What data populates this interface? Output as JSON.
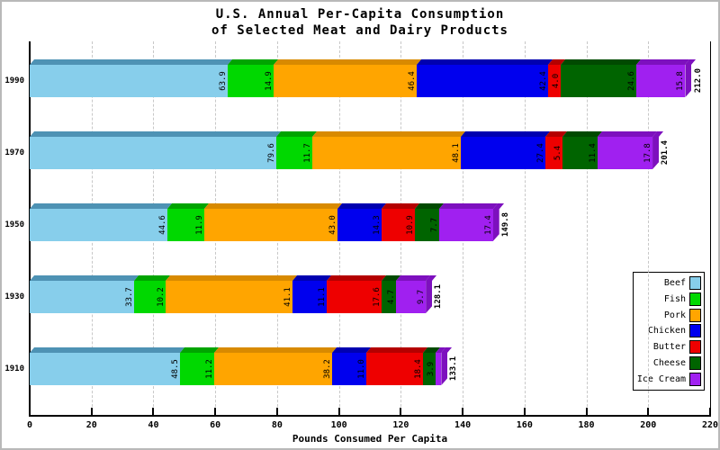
{
  "window": {
    "background": "#ffffff",
    "frame_border_color": "#b9b9b9"
  },
  "chart_data": {
    "type": "bar",
    "variant": "horizontal-stacked-3d",
    "title": "U.S. Annual Per-Capita Consumption",
    "subtitle": "of Selected Meat and Dairy Products",
    "xlabel": "Pounds Consumed Per Capita",
    "ylabel": "",
    "xlim": [
      0,
      220
    ],
    "xticks": [
      "0",
      "20",
      "40",
      "60",
      "80",
      "100",
      "120",
      "140",
      "160",
      "180",
      "200",
      "220"
    ],
    "grid": "vertical-dashed",
    "legend_position": "right-middle",
    "series": [
      {
        "name": "Beef",
        "color": "#87CEEB",
        "bevel_color": "#4E92B4"
      },
      {
        "name": "Fish",
        "color": "#00D800",
        "bevel_color": "#00A400"
      },
      {
        "name": "Pork",
        "color": "#FFA500",
        "bevel_color": "#D88A00"
      },
      {
        "name": "Chicken",
        "color": "#0000EE",
        "bevel_color": "#0000B0"
      },
      {
        "name": "Butter",
        "color": "#EE0000",
        "bevel_color": "#B40000"
      },
      {
        "name": "Cheese",
        "color": "#006400",
        "bevel_color": "#004A00"
      },
      {
        "name": "Ice Cream",
        "color": "#A020F0",
        "bevel_color": "#7D10BE"
      }
    ],
    "categories": [
      "1990",
      "1970",
      "1950",
      "1930",
      "1910"
    ],
    "rows": [
      {
        "year": "1990",
        "total_label": "212.0",
        "values": [
          63.9,
          14.9,
          46.4,
          42.4,
          4.0,
          24.6,
          15.8
        ],
        "labels": [
          "63.9",
          "14.9",
          "46.4",
          "42.4",
          "4.0",
          "24.6",
          "15.8"
        ]
      },
      {
        "year": "1970",
        "total_label": "201.4",
        "values": [
          79.6,
          11.7,
          48.1,
          27.4,
          5.4,
          11.4,
          17.8
        ],
        "labels": [
          "79.6",
          "11.7",
          "48.1",
          "27.4",
          "5.4",
          "11.4",
          "17.8"
        ]
      },
      {
        "year": "1950",
        "total_label": "149.8",
        "values": [
          44.6,
          11.9,
          43.0,
          14.3,
          10.9,
          7.7,
          17.4
        ],
        "labels": [
          "44.6",
          "11.9",
          "43.0",
          "14.3",
          "10.9",
          "7.7",
          "17.4"
        ]
      },
      {
        "year": "1930",
        "total_label": "128.1",
        "values": [
          33.7,
          10.2,
          41.1,
          11.1,
          17.6,
          4.7,
          9.7
        ],
        "labels": [
          "33.7",
          "10.2",
          "41.1",
          "11.1",
          "17.6",
          "4.7",
          "9.7"
        ]
      },
      {
        "year": "1910",
        "total_label": "133.1",
        "values": [
          48.5,
          11.2,
          38.2,
          11.0,
          18.4,
          3.9,
          1.9
        ],
        "labels": [
          "48.5",
          "11.2",
          "38.2",
          "11.0",
          "18.4",
          "3.9",
          ""
        ]
      }
    ]
  }
}
